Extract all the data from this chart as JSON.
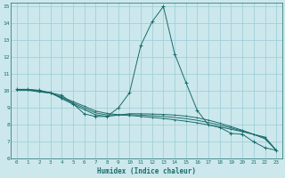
{
  "xlabel": "Humidex (Indice chaleur)",
  "bg_color": "#cce8ec",
  "grid_color": "#99ccd4",
  "line_color": "#1a6b6b",
  "xlim": [
    -0.5,
    23.5
  ],
  "ylim": [
    6,
    15.2
  ],
  "xticks": [
    0,
    1,
    2,
    3,
    4,
    5,
    6,
    7,
    8,
    9,
    10,
    11,
    12,
    13,
    14,
    15,
    16,
    17,
    18,
    19,
    20,
    21,
    22,
    23
  ],
  "yticks": [
    6,
    7,
    8,
    9,
    10,
    11,
    12,
    13,
    14,
    15
  ],
  "series1_x": [
    0,
    1,
    2,
    3,
    4,
    5,
    6,
    7,
    8,
    9,
    10,
    11,
    12,
    13,
    14,
    15,
    16,
    17,
    18,
    19,
    20,
    21,
    22,
    23
  ],
  "series1_y": [
    10.1,
    10.1,
    10.05,
    9.9,
    9.75,
    9.25,
    8.65,
    8.5,
    8.5,
    9.0,
    9.9,
    12.7,
    14.1,
    15.0,
    12.2,
    10.5,
    8.85,
    8.0,
    7.85,
    7.5,
    7.45,
    7.0,
    6.65,
    6.5
  ],
  "series2_x": [
    0,
    1,
    2,
    3,
    4,
    5,
    6,
    7,
    8,
    9,
    10,
    11,
    12,
    13,
    14,
    15,
    16,
    17,
    18,
    19,
    20,
    21,
    22,
    23
  ],
  "series2_y": [
    10.05,
    10.05,
    9.95,
    9.88,
    9.65,
    9.38,
    9.1,
    8.82,
    8.68,
    8.6,
    8.56,
    8.5,
    8.44,
    8.38,
    8.3,
    8.22,
    8.12,
    8.0,
    7.88,
    7.74,
    7.6,
    7.44,
    7.28,
    6.5
  ],
  "series3_x": [
    0,
    1,
    2,
    3,
    4,
    5,
    6,
    7,
    8,
    9,
    10,
    11,
    12,
    13,
    14,
    15,
    16,
    17,
    18,
    19,
    20,
    21,
    22,
    23
  ],
  "series3_y": [
    10.1,
    10.1,
    10.0,
    9.9,
    9.55,
    9.22,
    8.9,
    8.6,
    8.5,
    8.58,
    8.66,
    8.66,
    8.64,
    8.62,
    8.58,
    8.52,
    8.42,
    8.28,
    8.1,
    7.9,
    7.68,
    7.44,
    7.18,
    6.5
  ],
  "series4_x": [
    0,
    1,
    2,
    3,
    4,
    5,
    6,
    7,
    8,
    9,
    10,
    11,
    12,
    13,
    14,
    15,
    16,
    17,
    18,
    19,
    20,
    21,
    22,
    23
  ],
  "series4_y": [
    10.08,
    10.08,
    9.98,
    9.89,
    9.6,
    9.3,
    9.0,
    8.71,
    8.59,
    8.59,
    8.61,
    8.58,
    8.54,
    8.5,
    8.44,
    8.37,
    8.27,
    8.14,
    7.99,
    7.82,
    7.64,
    7.44,
    7.23,
    6.5
  ]
}
